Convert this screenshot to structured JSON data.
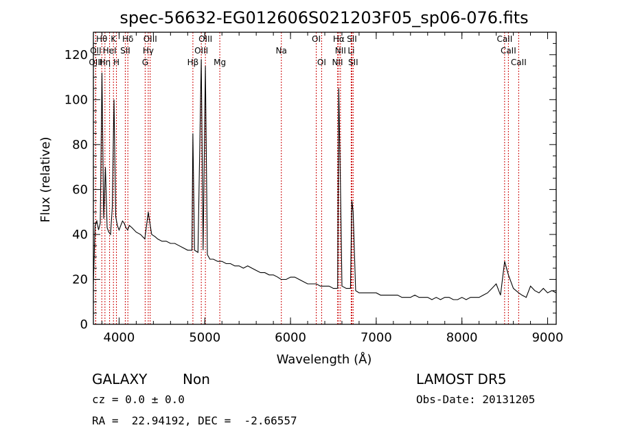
{
  "chart_data": {
    "type": "line",
    "title": "spec-56632-EG012606S021203F05_sp06-076.fits",
    "xlabel": "Wavelength (Å)",
    "ylabel": "Flux (relative)",
    "xlim": [
      3700,
      9100
    ],
    "ylim": [
      0,
      130
    ],
    "xticks": [
      4000,
      5000,
      6000,
      7000,
      8000,
      9000
    ],
    "yticks": [
      0,
      20,
      40,
      60,
      80,
      100,
      120
    ],
    "grid": false,
    "line_color": "#000000",
    "marker_color": "#cc0000",
    "series": [
      {
        "x": [
          3700,
          3720,
          3740,
          3760,
          3780,
          3800,
          3820,
          3840,
          3860,
          3880,
          3900,
          3920,
          3940,
          3960,
          3980,
          4000,
          4020,
          4040,
          4060,
          4080,
          4100,
          4120,
          4150,
          4200,
          4250,
          4300,
          4340,
          4363,
          4380,
          4420,
          4450,
          4500,
          4550,
          4600,
          4650,
          4700,
          4750,
          4800,
          4850,
          4861,
          4880,
          4920,
          4959,
          4980,
          5007,
          5030,
          5060,
          5100,
          5150,
          5200,
          5250,
          5300,
          5350,
          5400,
          5450,
          5500,
          5550,
          5600,
          5650,
          5700,
          5750,
          5800,
          5850,
          5890,
          5950,
          6000,
          6050,
          6100,
          6150,
          6200,
          6250,
          6300,
          6350,
          6400,
          6450,
          6500,
          6550,
          6563,
          6583,
          6600,
          6650,
          6700,
          6716,
          6731,
          6760,
          6800,
          6850,
          6900,
          6950,
          7000,
          7050,
          7100,
          7150,
          7200,
          7250,
          7300,
          7350,
          7400,
          7450,
          7500,
          7550,
          7600,
          7650,
          7700,
          7750,
          7800,
          7850,
          7900,
          7950,
          8000,
          8050,
          8100,
          8150,
          8200,
          8250,
          8300,
          8350,
          8400,
          8450,
          8498,
          8542,
          8600,
          8662,
          8700,
          8750,
          8800,
          8850,
          8900,
          8950,
          9000,
          9050,
          9100
        ],
        "y": [
          18,
          44,
          46,
          42,
          45,
          112,
          47,
          70,
          43,
          41,
          40,
          52,
          100,
          48,
          44,
          42,
          44,
          46,
          45,
          43,
          42,
          44,
          43,
          41,
          40,
          38,
          50,
          44,
          40,
          39,
          38,
          37,
          37,
          36,
          36,
          35,
          34,
          33,
          33,
          85,
          33,
          32,
          118,
          33,
          115,
          31,
          29,
          29,
          28,
          28,
          27,
          27,
          26,
          26,
          25,
          26,
          25,
          24,
          23,
          23,
          22,
          22,
          21,
          20,
          20,
          21,
          21,
          20,
          19,
          18,
          18,
          18,
          17,
          17,
          17,
          16,
          16,
          105,
          62,
          17,
          16,
          16,
          55,
          50,
          15,
          14,
          14,
          14,
          14,
          14,
          13,
          13,
          13,
          13,
          13,
          12,
          12,
          12,
          13,
          12,
          12,
          12,
          11,
          12,
          11,
          12,
          12,
          11,
          11,
          12,
          11,
          12,
          12,
          12,
          13,
          14,
          16,
          18,
          13,
          28,
          22,
          16,
          14,
          13,
          12,
          17,
          15,
          14,
          16,
          14,
          15,
          14
        ]
      }
    ],
    "lines": [
      {
        "label": "OII",
        "x": 3727,
        "row": 1
      },
      {
        "label": "OIII",
        "x": 3727,
        "row": 2
      },
      {
        "label": "Hη",
        "x": 3835,
        "row": 2
      },
      {
        "label": "Hθ",
        "x": 3798,
        "row": 0
      },
      {
        "label": "HeI",
        "x": 3889,
        "row": 1
      },
      {
        "label": "K",
        "x": 3934,
        "row": 0
      },
      {
        "label": "H",
        "x": 3969,
        "row": 2
      },
      {
        "label": "Hδ",
        "x": 4102,
        "row": 0
      },
      {
        "label": "SII",
        "x": 4072,
        "row": 1
      },
      {
        "label": "OIII",
        "x": 4363,
        "row": 0
      },
      {
        "label": "Hγ",
        "x": 4340,
        "row": 1
      },
      {
        "label": "G",
        "x": 4304,
        "row": 2
      },
      {
        "label": "Hβ",
        "x": 4861,
        "row": 2
      },
      {
        "label": "OIII",
        "x": 5007,
        "row": 0
      },
      {
        "label": "OIII",
        "x": 4959,
        "row": 1
      },
      {
        "label": "Mg",
        "x": 5175,
        "row": 2
      },
      {
        "label": "Na",
        "x": 5893,
        "row": 1
      },
      {
        "label": "OI",
        "x": 6300,
        "row": 0
      },
      {
        "label": "OI",
        "x": 6363,
        "row": 2
      },
      {
        "label": "Hα",
        "x": 6563,
        "row": 0
      },
      {
        "label": "SII",
        "x": 6716,
        "row": 0
      },
      {
        "label": "NII",
        "x": 6583,
        "row": 1
      },
      {
        "label": "Li",
        "x": 6708,
        "row": 1
      },
      {
        "label": "NII",
        "x": 6548,
        "row": 2
      },
      {
        "label": "SII",
        "x": 6731,
        "row": 2
      },
      {
        "label": "CaII",
        "x": 8498,
        "row": 0
      },
      {
        "label": "CaII",
        "x": 8542,
        "row": 1
      },
      {
        "label": "CaII",
        "x": 8662,
        "row": 2
      }
    ]
  },
  "info": {
    "class": "GALAXY",
    "subclass": "Non",
    "cz": "cz = 0.0 ± 0.0",
    "coords": "RA =  22.94192, DEC =  -2.66557",
    "survey": "LAMOST DR5",
    "obs_date": "Obs-Date: 20131205"
  }
}
